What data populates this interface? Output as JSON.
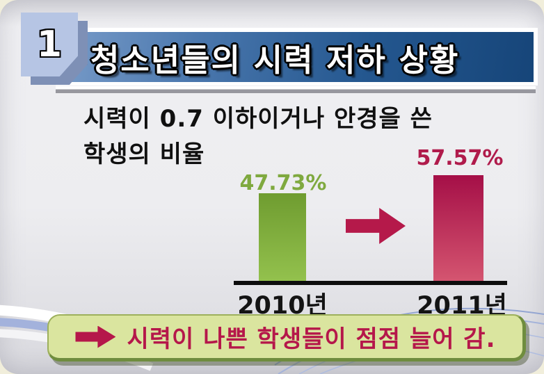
{
  "slide": {
    "badge_number": "1",
    "title": "청소년들의 시력 저하 상황",
    "description": {
      "line1": "시력이 0.7 이하이거나 안경을 쓴",
      "line2": "학생의 비율"
    }
  },
  "chart_data": {
    "type": "bar",
    "title": "시력이 0.7 이하이거나 안경을 쓴 학생의 비율",
    "categories": [
      "2010년",
      "2011년"
    ],
    "values": [
      47.73,
      57.57
    ],
    "value_labels": [
      "47.73%",
      "57.57%"
    ],
    "label_colors": [
      "#7fa93f",
      "#b01b4b"
    ],
    "bar_gradients": [
      [
        "#6f9c30",
        "#93c14d"
      ],
      [
        "#a50f47",
        "#d45570"
      ]
    ],
    "ylim": [
      0,
      60
    ],
    "grid": false,
    "legend": false,
    "annotation": "increase-arrow between 2010 and 2011 bars"
  },
  "callout": {
    "arrow_icon": "right-arrow",
    "text": "시력이 나쁜 학생들이 점점 늘어 감."
  },
  "colors": {
    "accent_crimson": "#b5174a",
    "accent_green": "#7fa93f",
    "banner_blue_dark": "#164579",
    "banner_blue_light": "#7a9dca",
    "badge_blue": "#b6c5e4",
    "callout_fill": "#dae59f",
    "callout_border": "#6f8d3e"
  }
}
